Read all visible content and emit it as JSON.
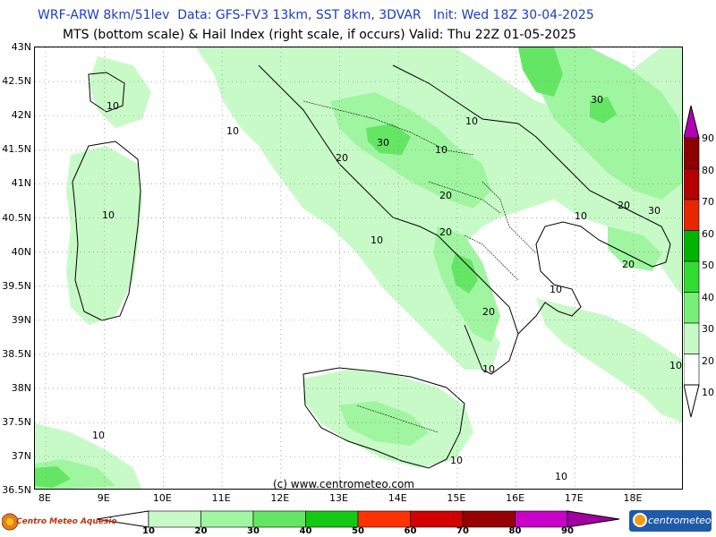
{
  "header": {
    "line1": "WRF-ARW 8km/51lev  Data: GFS-FV3 13km, SST 8km, 3DVAR   Init: Wed 18Z 30-04-2025",
    "line2": "MTS (bottom scale) & Hail Index (right scale, if occurs) Valid: Thu 22Z 01-05-2025"
  },
  "axes": {
    "lat_labels": [
      "43N",
      "42.5N",
      "42N",
      "41.5N",
      "41N",
      "40.5N",
      "40N",
      "39.5N",
      "39N",
      "38.5N",
      "38N",
      "37.5N",
      "37N",
      "36.5N"
    ],
    "lon_labels": [
      "8E",
      "9E",
      "10E",
      "11E",
      "12E",
      "13E",
      "14E",
      "15E",
      "16E",
      "17E",
      "18E"
    ]
  },
  "contour_labels": [
    {
      "text": "10"
    },
    {
      "text": "10"
    },
    {
      "text": "30"
    },
    {
      "text": "20"
    },
    {
      "text": "10"
    },
    {
      "text": "10"
    },
    {
      "text": "20"
    },
    {
      "text": "10"
    },
    {
      "text": "20"
    },
    {
      "text": "20"
    },
    {
      "text": "10"
    },
    {
      "text": "20"
    },
    {
      "text": "30"
    },
    {
      "text": "20"
    },
    {
      "text": "10"
    },
    {
      "text": "30"
    },
    {
      "text": "10"
    },
    {
      "text": "10"
    },
    {
      "text": "10"
    },
    {
      "text": "10"
    },
    {
      "text": "10"
    },
    {
      "text": "10"
    }
  ],
  "copyright": "(c) www.centrometeo.com",
  "right_scale": {
    "labels": [
      "90",
      "80",
      "70",
      "60",
      "50",
      "40",
      "30",
      "20",
      "10"
    ],
    "colors": [
      "#b400b4",
      "#8c0000",
      "#b40000",
      "#e62800",
      "#00b400",
      "#32dc32",
      "#78f078",
      "#c8fac8",
      "#ffffff"
    ]
  },
  "bottom_scale": {
    "labels": [
      "10",
      "20",
      "30",
      "40",
      "50",
      "60",
      "70",
      "80",
      "90"
    ],
    "colors": [
      "#c8fac8",
      "#a0f5a0",
      "#64e664",
      "#14c814",
      "#ff3200",
      "#d20000",
      "#960000",
      "#c800c8",
      "#a000a0"
    ]
  },
  "logos": {
    "left": "Centro Meteo Aquesio",
    "right": "centrometeo"
  }
}
